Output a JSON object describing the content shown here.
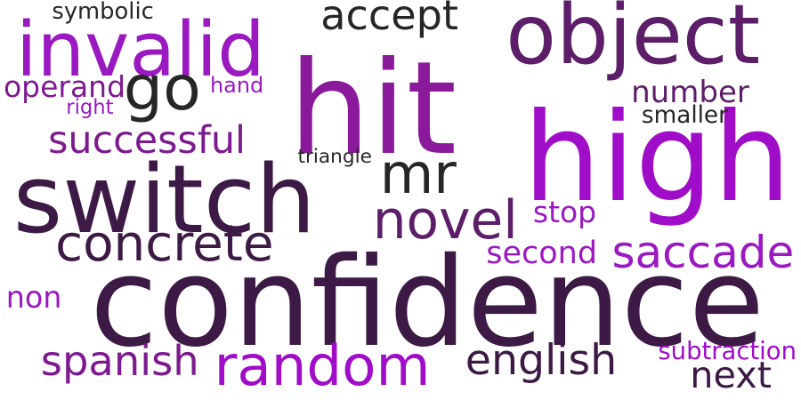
{
  "word_cloud": {
    "background": "#ffffff",
    "words": [
      {
        "text": "confidence",
        "color": "#3d1a45"
      },
      {
        "text": "high",
        "color": "#a00dc9"
      },
      {
        "text": "hit",
        "color": "#8a1a9b"
      },
      {
        "text": "switch",
        "color": "#3d1a45"
      },
      {
        "text": "object",
        "color": "#5c1d69"
      },
      {
        "text": "invalid",
        "color": "#9b19c1"
      },
      {
        "text": "random",
        "color": "#a00dc9"
      },
      {
        "text": "go",
        "color": "#262626"
      },
      {
        "text": "mr",
        "color": "#262626"
      },
      {
        "text": "concrete",
        "color": "#3d1a45"
      },
      {
        "text": "english",
        "color": "#3d1a45"
      },
      {
        "text": "spanish",
        "color": "#7d1a8f"
      },
      {
        "text": "novel",
        "color": "#5c1d69"
      },
      {
        "text": "saccade",
        "color": "#9b19c1"
      },
      {
        "text": "accept",
        "color": "#262626"
      },
      {
        "text": "successful",
        "color": "#7d1a8f"
      },
      {
        "text": "number",
        "color": "#5c1d69"
      },
      {
        "text": "operand",
        "color": "#7d1a8f"
      },
      {
        "text": "stop",
        "color": "#9b19c1"
      },
      {
        "text": "second",
        "color": "#9b19c1"
      },
      {
        "text": "next",
        "color": "#3d1a45"
      },
      {
        "text": "non",
        "color": "#9b19c1"
      },
      {
        "text": "symbolic",
        "color": "#262626"
      },
      {
        "text": "triangle",
        "color": "#262626"
      },
      {
        "text": "smaller",
        "color": "#262626"
      },
      {
        "text": "subtraction",
        "color": "#a00dc9"
      },
      {
        "text": "hand",
        "color": "#9b19c1"
      },
      {
        "text": "right",
        "color": "#9b19c1"
      }
    ]
  }
}
